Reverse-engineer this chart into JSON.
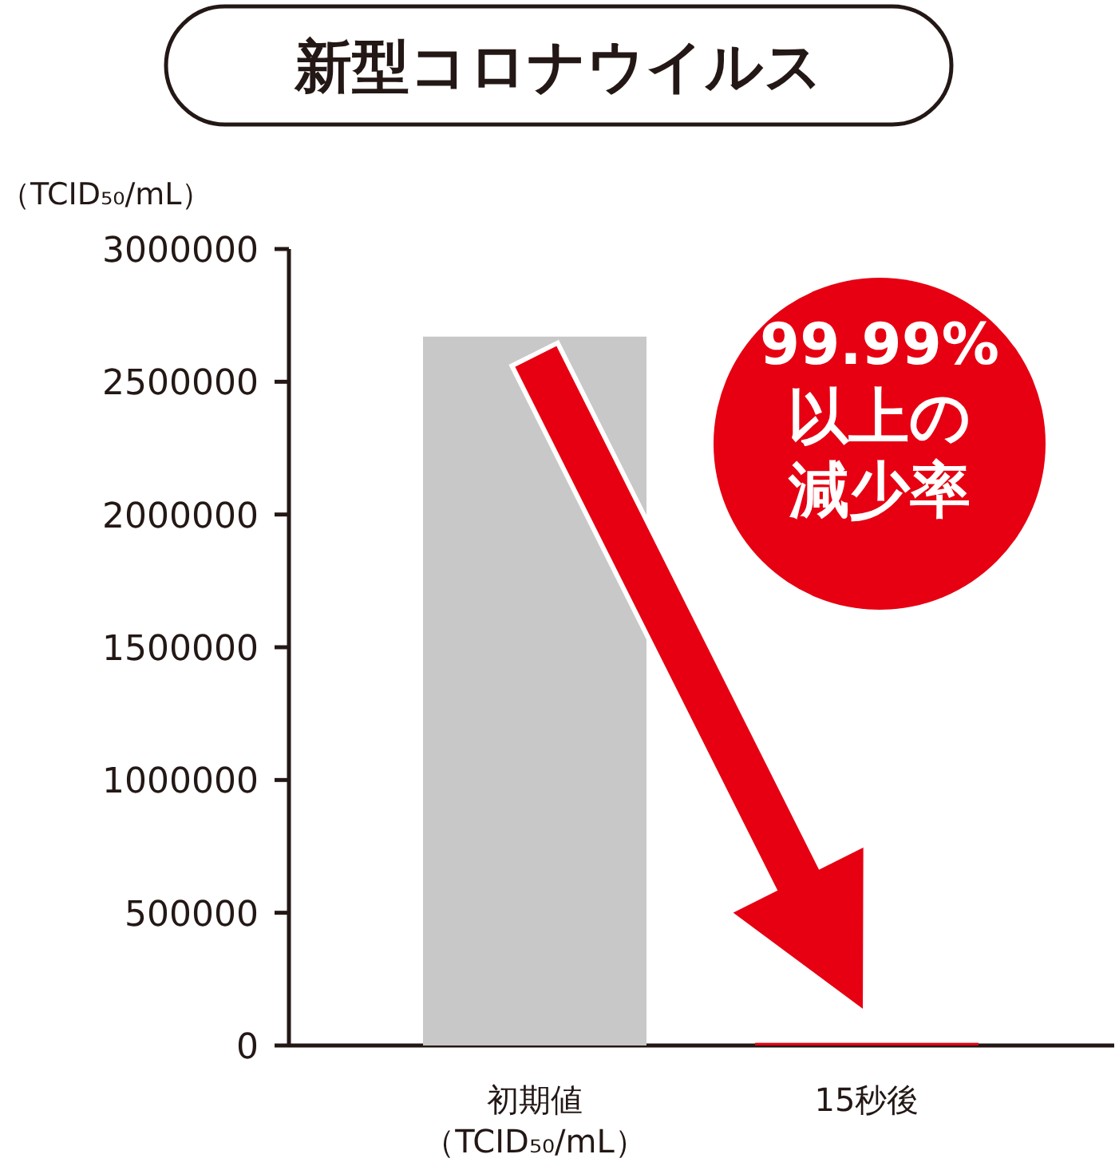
{
  "chart_data": {
    "type": "bar",
    "title": "新型コロナウイルス",
    "ylabel": "（TCID₅₀/mL）",
    "categories": [
      "初期値（TCID₅₀/mL）",
      "15秒後"
    ],
    "values": [
      2670000,
      10000
    ],
    "colors": [
      "#c8c8c8",
      "#e60012"
    ],
    "ylim": [
      0,
      3000000
    ],
    "yticks": [
      0,
      500000,
      1000000,
      1500000,
      2000000,
      2500000,
      3000000
    ],
    "annotations": [
      "99.99%",
      "以上の",
      "減少率"
    ]
  }
}
